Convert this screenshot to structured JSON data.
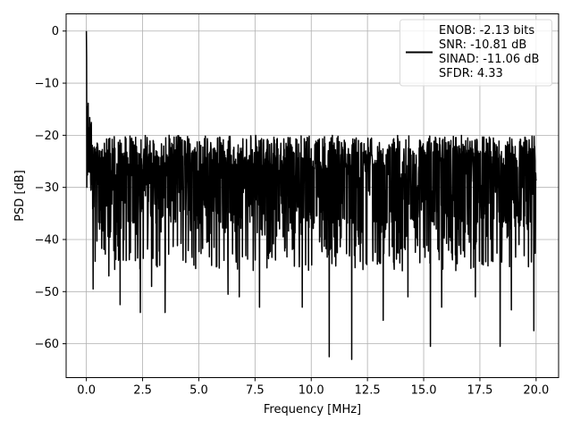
{
  "chart_data": {
    "type": "line",
    "title": "",
    "xlabel": "Frequency [MHz]",
    "ylabel": "PSD [dB]",
    "xlim": [
      -0.9,
      21.0
    ],
    "ylim": [
      -66.5,
      3.3
    ],
    "xticks": [
      0.0,
      2.5,
      5.0,
      7.5,
      10.0,
      12.5,
      15.0,
      17.5,
      20.0
    ],
    "xtick_labels": [
      "0.0",
      "2.5",
      "5.0",
      "7.5",
      "10.0",
      "12.5",
      "15.0",
      "17.5",
      "20.0"
    ],
    "yticks": [
      0,
      -10,
      -20,
      -30,
      -40,
      -50,
      -60
    ],
    "ytick_labels": [
      "0",
      "−10",
      "−20",
      "−30",
      "−40",
      "−50",
      "−60"
    ],
    "grid": true,
    "legend_position": "top-right",
    "legend_lines": [
      "ENOB: -2.13 bits",
      "SNR: -10.81 dB",
      "SINAD: -11.06 dB",
      "SFDR: 4.33"
    ],
    "series": [
      {
        "color": "#000000",
        "description": "noisy power spectral density, peak 0 dB at DC, falling to a noise floor around -30 dB with envelope ~-20 dB and dips to ~-63 dB",
        "x_range": [
          0,
          20
        ],
        "points": 2000,
        "features": {
          "dc_peak": 0,
          "noise_floor_mean": -30,
          "upper_envelope": -20,
          "deep_dips": [
            {
              "x": 0.3,
              "y": -49.5
            },
            {
              "x": 1.0,
              "y": -47.0
            },
            {
              "x": 1.5,
              "y": -52.5
            },
            {
              "x": 2.4,
              "y": -54.0
            },
            {
              "x": 2.9,
              "y": -49.0
            },
            {
              "x": 3.5,
              "y": -54.0
            },
            {
              "x": 4.3,
              "y": -44.0
            },
            {
              "x": 6.3,
              "y": -50.5
            },
            {
              "x": 6.8,
              "y": -51.0
            },
            {
              "x": 7.7,
              "y": -53.0
            },
            {
              "x": 9.6,
              "y": -53.0
            },
            {
              "x": 10.8,
              "y": -62.5
            },
            {
              "x": 11.8,
              "y": -63.0
            },
            {
              "x": 13.2,
              "y": -55.5
            },
            {
              "x": 14.3,
              "y": -51.0
            },
            {
              "x": 15.3,
              "y": -60.5
            },
            {
              "x": 15.8,
              "y": -53.0
            },
            {
              "x": 17.3,
              "y": -51.0
            },
            {
              "x": 18.4,
              "y": -60.5
            },
            {
              "x": 18.9,
              "y": -53.5
            },
            {
              "x": 19.9,
              "y": -57.5
            }
          ]
        }
      }
    ]
  }
}
